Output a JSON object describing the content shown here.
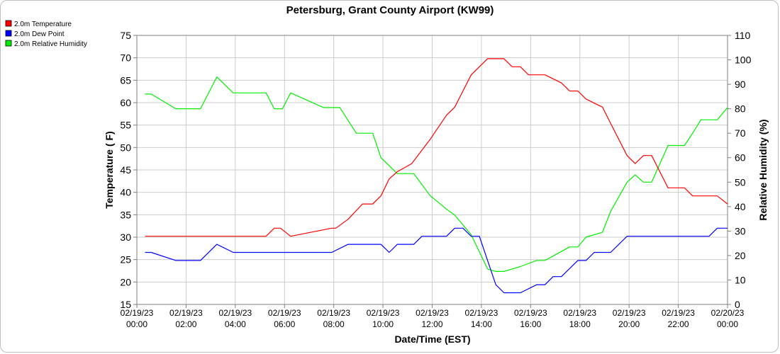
{
  "chart_data": {
    "type": "line",
    "title": "Petersburg, Grant County Airport (KW99)",
    "xlabel": "Date/Time (EST)",
    "ylabel": "Temperature ( F)",
    "y2label": "Relative Humidity (%)",
    "ylim": [
      15,
      75
    ],
    "y2lim": [
      0,
      110
    ],
    "grid": true,
    "legend_position": "top-left",
    "x_ticks": [
      [
        "02/19/23",
        "00:00"
      ],
      [
        "02/19/23",
        "02:00"
      ],
      [
        "02/19/23",
        "04:00"
      ],
      [
        "02/19/23",
        "06:00"
      ],
      [
        "02/19/23",
        "08:00"
      ],
      [
        "02/19/23",
        "10:00"
      ],
      [
        "02/19/23",
        "12:00"
      ],
      [
        "02/19/23",
        "14:00"
      ],
      [
        "02/19/23",
        "16:00"
      ],
      [
        "02/19/23",
        "18:00"
      ],
      [
        "02/19/23",
        "20:00"
      ],
      [
        "02/19/23",
        "22:00"
      ],
      [
        "02/20/23",
        "00:00"
      ]
    ],
    "y_ticks": [
      15,
      20,
      25,
      30,
      35,
      40,
      45,
      50,
      55,
      60,
      65,
      70,
      75
    ],
    "y2_ticks": [
      0,
      10,
      20,
      30,
      40,
      50,
      60,
      70,
      80,
      90,
      100,
      110
    ],
    "series": [
      {
        "name": "2.0m Temperature",
        "color": "#ff0000",
        "axis": "left",
        "points": [
          [
            "02/19/23 00:20",
            30.2
          ],
          [
            "02/19/23 05:15",
            30.2
          ],
          [
            "02/19/23 05:35",
            32
          ],
          [
            "02/19/23 05:50",
            32
          ],
          [
            "02/19/23 06:15",
            30.2
          ],
          [
            "02/19/23 07:55",
            32
          ],
          [
            "02/19/23 08:05",
            32
          ],
          [
            "02/19/23 08:35",
            34
          ],
          [
            "02/19/23 09:10",
            37.4
          ],
          [
            "02/19/23 09:35",
            37.4
          ],
          [
            "02/19/23 09:55",
            39.2
          ],
          [
            "02/19/23 10:15",
            43
          ],
          [
            "02/19/23 10:35",
            44.6
          ],
          [
            "02/19/23 11:10",
            46.4
          ],
          [
            "02/19/23 11:55",
            51.8
          ],
          [
            "02/19/23 12:35",
            57.2
          ],
          [
            "02/19/23 12:55",
            59
          ],
          [
            "02/19/23 13:15",
            62.6
          ],
          [
            "02/19/23 13:35",
            66.2
          ],
          [
            "02/19/23 13:55",
            68
          ],
          [
            "02/19/23 14:15",
            69.8
          ],
          [
            "02/19/23 14:55",
            69.8
          ],
          [
            "02/19/23 15:15",
            68
          ],
          [
            "02/19/23 15:35",
            68
          ],
          [
            "02/19/23 15:55",
            66.2
          ],
          [
            "02/19/23 16:35",
            66.2
          ],
          [
            "02/19/23 17:15",
            64.4
          ],
          [
            "02/19/23 17:35",
            62.6
          ],
          [
            "02/19/23 17:55",
            62.6
          ],
          [
            "02/19/23 18:15",
            60.8
          ],
          [
            "02/19/23 18:55",
            59
          ],
          [
            "02/19/23 19:15",
            55.4
          ],
          [
            "02/19/23 19:55",
            48.2
          ],
          [
            "02/19/23 20:15",
            46.4
          ],
          [
            "02/19/23 20:35",
            48.2
          ],
          [
            "02/19/23 20:55",
            48.2
          ],
          [
            "02/19/23 21:35",
            41
          ],
          [
            "02/19/23 22:15",
            41
          ],
          [
            "02/19/23 22:35",
            39.2
          ],
          [
            "02/19/23 23:35",
            39.2
          ],
          [
            "02/20/23 00:00",
            37.4
          ]
        ]
      },
      {
        "name": "2.0m Dew Point",
        "color": "#0000ff",
        "axis": "left",
        "points": [
          [
            "02/19/23 00:20",
            26.6
          ],
          [
            "02/19/23 00:35",
            26.6
          ],
          [
            "02/19/23 01:35",
            24.8
          ],
          [
            "02/19/23 02:35",
            24.8
          ],
          [
            "02/19/23 03:15",
            28.4
          ],
          [
            "02/19/23 03:55",
            26.6
          ],
          [
            "02/19/23 07:55",
            26.6
          ],
          [
            "02/19/23 08:35",
            28.4
          ],
          [
            "02/19/23 09:55",
            28.4
          ],
          [
            "02/19/23 10:15",
            26.6
          ],
          [
            "02/19/23 10:35",
            28.4
          ],
          [
            "02/19/23 11:15",
            28.4
          ],
          [
            "02/19/23 11:35",
            30.2
          ],
          [
            "02/19/23 12:35",
            30.2
          ],
          [
            "02/19/23 12:55",
            32
          ],
          [
            "02/19/23 13:15",
            32
          ],
          [
            "02/19/23 13:35",
            30.2
          ],
          [
            "02/19/23 13:55",
            30.2
          ],
          [
            "02/19/23 14:35",
            19.4
          ],
          [
            "02/19/23 14:55",
            17.6
          ],
          [
            "02/19/23 15:15",
            17.6
          ],
          [
            "02/19/23 15:35",
            17.6
          ],
          [
            "02/19/23 16:15",
            19.4
          ],
          [
            "02/19/23 16:35",
            19.4
          ],
          [
            "02/19/23 16:55",
            21.2
          ],
          [
            "02/19/23 17:15",
            21.2
          ],
          [
            "02/19/23 17:55",
            24.8
          ],
          [
            "02/19/23 18:15",
            24.8
          ],
          [
            "02/19/23 18:35",
            26.6
          ],
          [
            "02/19/23 19:15",
            26.6
          ],
          [
            "02/19/23 19:55",
            30.2
          ],
          [
            "02/19/23 23:15",
            30.2
          ],
          [
            "02/19/23 23:35",
            32
          ],
          [
            "02/20/23 00:00",
            32
          ]
        ]
      },
      {
        "name": "2.0m Relative Humidity",
        "color": "#00ee00",
        "axis": "right",
        "points": [
          [
            "02/19/23 00:20",
            86
          ],
          [
            "02/19/23 00:35",
            86
          ],
          [
            "02/19/23 01:35",
            80
          ],
          [
            "02/19/23 02:35",
            80
          ],
          [
            "02/19/23 03:15",
            93
          ],
          [
            "02/19/23 03:55",
            86.5
          ],
          [
            "02/19/23 05:15",
            86.5
          ],
          [
            "02/19/23 05:35",
            80
          ],
          [
            "02/19/23 05:55",
            80
          ],
          [
            "02/19/23 06:15",
            86.5
          ],
          [
            "02/19/23 07:35",
            80.5
          ],
          [
            "02/19/23 08:15",
            80.5
          ],
          [
            "02/19/23 08:55",
            70
          ],
          [
            "02/19/23 09:35",
            70
          ],
          [
            "02/19/23 09:55",
            60
          ],
          [
            "02/19/23 10:35",
            53.5
          ],
          [
            "02/19/23 11:15",
            53.5
          ],
          [
            "02/19/23 11:55",
            44.5
          ],
          [
            "02/19/23 12:35",
            39
          ],
          [
            "02/19/23 12:55",
            36.5
          ],
          [
            "02/19/23 13:35",
            28.5
          ],
          [
            "02/19/23 14:15",
            14.5
          ],
          [
            "02/19/23 14:35",
            13.5
          ],
          [
            "02/19/23 14:55",
            13.5
          ],
          [
            "02/19/23 15:35",
            15.5
          ],
          [
            "02/19/23 16:15",
            18
          ],
          [
            "02/19/23 16:35",
            18
          ],
          [
            "02/19/23 17:35",
            23.5
          ],
          [
            "02/19/23 17:55",
            23.5
          ],
          [
            "02/19/23 18:15",
            27.5
          ],
          [
            "02/19/23 18:55",
            29.5
          ],
          [
            "02/19/23 19:15",
            38
          ],
          [
            "02/19/23 19:55",
            50
          ],
          [
            "02/19/23 20:15",
            53
          ],
          [
            "02/19/23 20:35",
            50
          ],
          [
            "02/19/23 20:55",
            50
          ],
          [
            "02/19/23 21:35",
            65
          ],
          [
            "02/19/23 22:15",
            65
          ],
          [
            "02/19/23 22:35",
            70
          ],
          [
            "02/19/23 22:55",
            75.5
          ],
          [
            "02/19/23 23:35",
            75.5
          ],
          [
            "02/20/23 00:00",
            80.5
          ]
        ]
      }
    ]
  }
}
